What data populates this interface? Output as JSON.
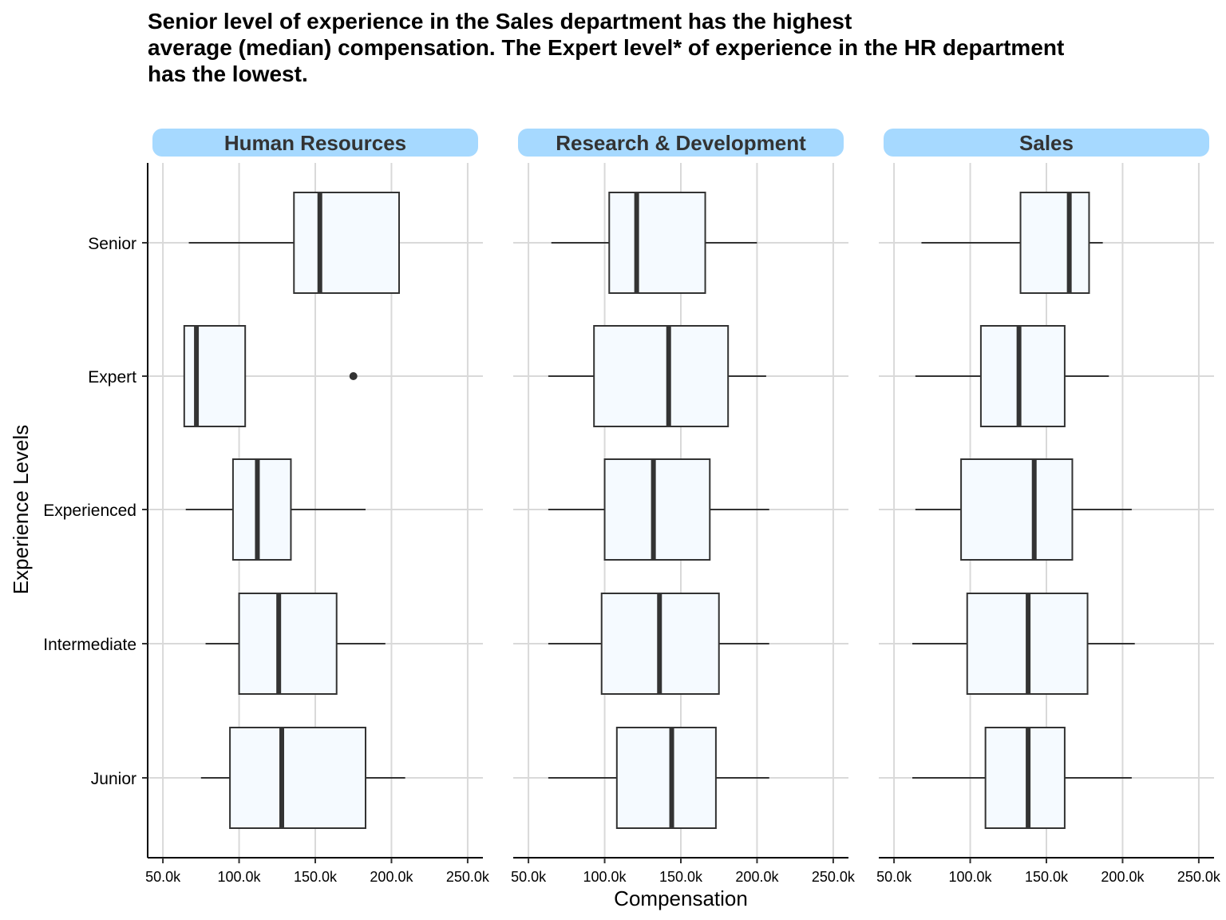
{
  "chart_data": {
    "type": "boxplot",
    "title_lines": [
      "Senior level of experience in the Sales department has the highest",
      "average (median) compensation. The Expert level* of experience in the HR department",
      "has the lowest."
    ],
    "xlabel": "Compensation",
    "ylabel": "Experience Levels",
    "x_ticks": [
      50000,
      100000,
      150000,
      200000,
      250000
    ],
    "x_tick_labels": [
      "50.0k",
      "100.0k",
      "150.0k",
      "200.0k",
      "250.0k"
    ],
    "xlim": [
      40000,
      260000
    ],
    "categories": [
      "Senior",
      "Expert",
      "Experienced",
      "Intermediate",
      "Junior"
    ],
    "grid": "on",
    "strip_color": "#A6D9FF",
    "box_fill": "#F5FAFF",
    "line_color": "#333333",
    "panels": [
      {
        "name": "Human Resources",
        "boxes": [
          {
            "category": "Senior",
            "whisker_low": 67000,
            "q1": 136000,
            "median": 153000,
            "q3": 205000,
            "whisker_high": 205000,
            "outliers": []
          },
          {
            "category": "Expert",
            "whisker_low": 64000,
            "q1": 64000,
            "median": 72000,
            "q3": 104000,
            "whisker_high": 104000,
            "outliers": [
              175000
            ]
          },
          {
            "category": "Experienced",
            "whisker_low": 65000,
            "q1": 96000,
            "median": 112000,
            "q3": 134000,
            "whisker_high": 183000,
            "outliers": []
          },
          {
            "category": "Intermediate",
            "whisker_low": 78000,
            "q1": 100000,
            "median": 126000,
            "q3": 164000,
            "whisker_high": 196000,
            "outliers": []
          },
          {
            "category": "Junior",
            "whisker_low": 75000,
            "q1": 94000,
            "median": 128000,
            "q3": 183000,
            "whisker_high": 209000,
            "outliers": []
          }
        ]
      },
      {
        "name": "Research & Development",
        "boxes": [
          {
            "category": "Senior",
            "whisker_low": 65000,
            "q1": 103000,
            "median": 121000,
            "q3": 166000,
            "whisker_high": 200000,
            "outliers": []
          },
          {
            "category": "Expert",
            "whisker_low": 63000,
            "q1": 93000,
            "median": 142000,
            "q3": 181000,
            "whisker_high": 206000,
            "outliers": []
          },
          {
            "category": "Experienced",
            "whisker_low": 63000,
            "q1": 100000,
            "median": 132000,
            "q3": 169000,
            "whisker_high": 208000,
            "outliers": []
          },
          {
            "category": "Intermediate",
            "whisker_low": 63000,
            "q1": 98000,
            "median": 136000,
            "q3": 175000,
            "whisker_high": 208000,
            "outliers": []
          },
          {
            "category": "Junior",
            "whisker_low": 63000,
            "q1": 108000,
            "median": 144000,
            "q3": 173000,
            "whisker_high": 208000,
            "outliers": []
          }
        ]
      },
      {
        "name": "Sales",
        "boxes": [
          {
            "category": "Senior",
            "whisker_low": 68000,
            "q1": 133000,
            "median": 165000,
            "q3": 178000,
            "whisker_high": 187000,
            "outliers": []
          },
          {
            "category": "Expert",
            "whisker_low": 64000,
            "q1": 107000,
            "median": 132000,
            "q3": 162000,
            "whisker_high": 191000,
            "outliers": []
          },
          {
            "category": "Experienced",
            "whisker_low": 64000,
            "q1": 94000,
            "median": 142000,
            "q3": 167000,
            "whisker_high": 206000,
            "outliers": []
          },
          {
            "category": "Intermediate",
            "whisker_low": 62000,
            "q1": 98000,
            "median": 138000,
            "q3": 177000,
            "whisker_high": 208000,
            "outliers": []
          },
          {
            "category": "Junior",
            "whisker_low": 62000,
            "q1": 110000,
            "median": 138000,
            "q3": 162000,
            "whisker_high": 206000,
            "outliers": []
          }
        ]
      }
    ]
  }
}
